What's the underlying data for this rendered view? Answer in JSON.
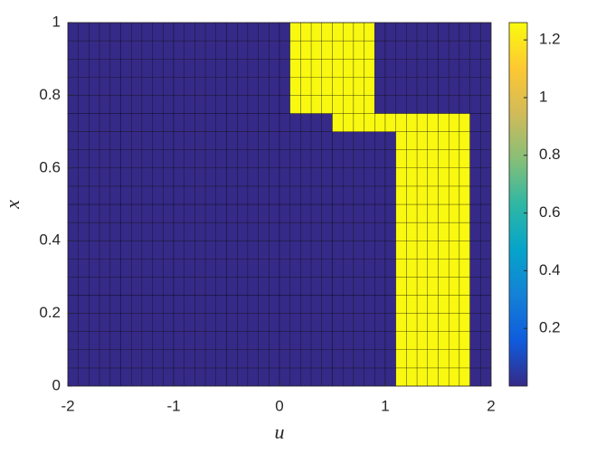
{
  "chart_data": {
    "type": "heatmap",
    "xlabel": "u",
    "ylabel": "x",
    "xlim": [
      -2,
      2
    ],
    "ylim": [
      0,
      1
    ],
    "xticks": [
      -2,
      -1,
      0,
      1,
      2
    ],
    "yticks": [
      0,
      0.2,
      0.4,
      0.6,
      0.8,
      1
    ],
    "clim": [
      0,
      1.26
    ],
    "cticks": [
      0.2,
      0.4,
      0.6,
      0.8,
      1,
      1.2
    ],
    "colormap": [
      "#352a87",
      "#0f5cdd",
      "#1481d6",
      "#06a4ca",
      "#2eb7a4",
      "#87bf77",
      "#d1bb59",
      "#fec832",
      "#f9fb0e"
    ],
    "values": [
      [
        0,
        0,
        0,
        0,
        0,
        0,
        0,
        0,
        0,
        0,
        0,
        0,
        0,
        0,
        0,
        0,
        0,
        0,
        0,
        0,
        0,
        0,
        0,
        0,
        0,
        0,
        0,
        0,
        0,
        0,
        0,
        1.25,
        1.25,
        1.25,
        1.25,
        1.25,
        1.25,
        1.25,
        0,
        0
      ],
      [
        0,
        0,
        0,
        0,
        0,
        0,
        0,
        0,
        0,
        0,
        0,
        0,
        0,
        0,
        0,
        0,
        0,
        0,
        0,
        0,
        0,
        0,
        0,
        0,
        0,
        0,
        0,
        0,
        0,
        0,
        0,
        1.25,
        1.25,
        1.25,
        1.25,
        1.25,
        1.25,
        1.25,
        0,
        0
      ],
      [
        0,
        0,
        0,
        0,
        0,
        0,
        0,
        0,
        0,
        0,
        0,
        0,
        0,
        0,
        0,
        0,
        0,
        0,
        0,
        0,
        0,
        0,
        0,
        0,
        0,
        0,
        0,
        0,
        0,
        0,
        0,
        1.25,
        1.25,
        1.25,
        1.25,
        1.25,
        1.25,
        1.25,
        0,
        0
      ],
      [
        0,
        0,
        0,
        0,
        0,
        0,
        0,
        0,
        0,
        0,
        0,
        0,
        0,
        0,
        0,
        0,
        0,
        0,
        0,
        0,
        0,
        0,
        0,
        0,
        0,
        0,
        0,
        0,
        0,
        0,
        0,
        1.25,
        1.25,
        1.25,
        1.25,
        1.25,
        1.25,
        1.25,
        0,
        0
      ],
      [
        0,
        0,
        0,
        0,
        0,
        0,
        0,
        0,
        0,
        0,
        0,
        0,
        0,
        0,
        0,
        0,
        0,
        0,
        0,
        0,
        0,
        0,
        0,
        0,
        0,
        0,
        0,
        0,
        0,
        0,
        0,
        1.25,
        1.25,
        1.25,
        1.25,
        1.25,
        1.25,
        1.25,
        0,
        0
      ],
      [
        0,
        0,
        0,
        0,
        0,
        0,
        0,
        0,
        0,
        0,
        0,
        0,
        0,
        0,
        0,
        0,
        0,
        0,
        0,
        0,
        0,
        0,
        0,
        0,
        0,
        0,
        0,
        0,
        0,
        0,
        0,
        1.25,
        1.25,
        1.25,
        1.25,
        1.25,
        1.25,
        1.25,
        0,
        0
      ],
      [
        0,
        0,
        0,
        0,
        0,
        0,
        0,
        0,
        0,
        0,
        0,
        0,
        0,
        0,
        0,
        0,
        0,
        0,
        0,
        0,
        0,
        0,
        0,
        0,
        0,
        0,
        0,
        0,
        0,
        0,
        0,
        1.25,
        1.25,
        1.25,
        1.25,
        1.25,
        1.25,
        1.25,
        0,
        0
      ],
      [
        0,
        0,
        0,
        0,
        0,
        0,
        0,
        0,
        0,
        0,
        0,
        0,
        0,
        0,
        0,
        0,
        0,
        0,
        0,
        0,
        0,
        0,
        0,
        0,
        0,
        0,
        0,
        0,
        0,
        0,
        0,
        1.25,
        1.25,
        1.25,
        1.25,
        1.25,
        1.25,
        1.25,
        0,
        0
      ],
      [
        0,
        0,
        0,
        0,
        0,
        0,
        0,
        0,
        0,
        0,
        0,
        0,
        0,
        0,
        0,
        0,
        0,
        0,
        0,
        0,
        0,
        0,
        0,
        0,
        0,
        0,
        0,
        0,
        0,
        0,
        0,
        1.25,
        1.25,
        1.25,
        1.25,
        1.25,
        1.25,
        1.25,
        0,
        0
      ],
      [
        0,
        0,
        0,
        0,
        0,
        0,
        0,
        0,
        0,
        0,
        0,
        0,
        0,
        0,
        0,
        0,
        0,
        0,
        0,
        0,
        0,
        0,
        0,
        0,
        0,
        0,
        0,
        0,
        0,
        0,
        0,
        1.25,
        1.25,
        1.25,
        1.25,
        1.25,
        1.25,
        1.25,
        0,
        0
      ],
      [
        0,
        0,
        0,
        0,
        0,
        0,
        0,
        0,
        0,
        0,
        0,
        0,
        0,
        0,
        0,
        0,
        0,
        0,
        0,
        0,
        0,
        0,
        0,
        0,
        0,
        0,
        0,
        0,
        0,
        0,
        0,
        1.25,
        1.25,
        1.25,
        1.25,
        1.25,
        1.25,
        1.25,
        0,
        0
      ],
      [
        0,
        0,
        0,
        0,
        0,
        0,
        0,
        0,
        0,
        0,
        0,
        0,
        0,
        0,
        0,
        0,
        0,
        0,
        0,
        0,
        0,
        0,
        0,
        0,
        0,
        0,
        0,
        0,
        0,
        0,
        0,
        1.25,
        1.25,
        1.25,
        1.25,
        1.25,
        1.25,
        1.25,
        0,
        0
      ],
      [
        0,
        0,
        0,
        0,
        0,
        0,
        0,
        0,
        0,
        0,
        0,
        0,
        0,
        0,
        0,
        0,
        0,
        0,
        0,
        0,
        0,
        0,
        0,
        0,
        0,
        0,
        0,
        0,
        0,
        0,
        0,
        1.25,
        1.25,
        1.25,
        1.25,
        1.25,
        1.25,
        1.25,
        0,
        0
      ],
      [
        0,
        0,
        0,
        0,
        0,
        0,
        0,
        0,
        0,
        0,
        0,
        0,
        0,
        0,
        0,
        0,
        0,
        0,
        0,
        0,
        0,
        0,
        0,
        0,
        0,
        0,
        0,
        0,
        0,
        0,
        0,
        1.25,
        1.25,
        1.25,
        1.25,
        1.25,
        1.25,
        1.25,
        0,
        0
      ],
      [
        0,
        0,
        0,
        0,
        0,
        0,
        0,
        0,
        0,
        0,
        0,
        0,
        0,
        0,
        0,
        0,
        0,
        0,
        0,
        0,
        0,
        0,
        0,
        0,
        0,
        1.25,
        1.25,
        1.25,
        1.25,
        1.25,
        1.25,
        1.25,
        1.25,
        1.25,
        1.25,
        1.25,
        1.25,
        1.25,
        0,
        0
      ],
      [
        0,
        0,
        0,
        0,
        0,
        0,
        0,
        0,
        0,
        0,
        0,
        0,
        0,
        0,
        0,
        0,
        0,
        0,
        0,
        0,
        0,
        1.25,
        1.25,
        1.25,
        1.25,
        1.25,
        1.25,
        1.25,
        1.25,
        0,
        0,
        0,
        0,
        0,
        0,
        0,
        0,
        0,
        0,
        0
      ],
      [
        0,
        0,
        0,
        0,
        0,
        0,
        0,
        0,
        0,
        0,
        0,
        0,
        0,
        0,
        0,
        0,
        0,
        0,
        0,
        0,
        0,
        1.25,
        1.25,
        1.25,
        1.25,
        1.25,
        1.25,
        1.25,
        1.25,
        0,
        0,
        0,
        0,
        0,
        0,
        0,
        0,
        0,
        0,
        0
      ],
      [
        0,
        0,
        0,
        0,
        0,
        0,
        0,
        0,
        0,
        0,
        0,
        0,
        0,
        0,
        0,
        0,
        0,
        0,
        0,
        0,
        0,
        1.25,
        1.25,
        1.25,
        1.25,
        1.25,
        1.25,
        1.25,
        1.25,
        0,
        0,
        0,
        0,
        0,
        0,
        0,
        0,
        0,
        0,
        0
      ],
      [
        0,
        0,
        0,
        0,
        0,
        0,
        0,
        0,
        0,
        0,
        0,
        0,
        0,
        0,
        0,
        0,
        0,
        0,
        0,
        0,
        0,
        1.25,
        1.25,
        1.25,
        1.25,
        1.25,
        1.25,
        1.25,
        1.25,
        0,
        0,
        0,
        0,
        0,
        0,
        0,
        0,
        0,
        0,
        0
      ],
      [
        0,
        0,
        0,
        0,
        0,
        0,
        0,
        0,
        0,
        0,
        0,
        0,
        0,
        0,
        0,
        0,
        0,
        0,
        0,
        0,
        0,
        1.25,
        1.25,
        1.25,
        1.25,
        1.25,
        1.25,
        1.25,
        1.25,
        0,
        0,
        0,
        0,
        0,
        0,
        0,
        0,
        0,
        0,
        0
      ]
    ]
  }
}
